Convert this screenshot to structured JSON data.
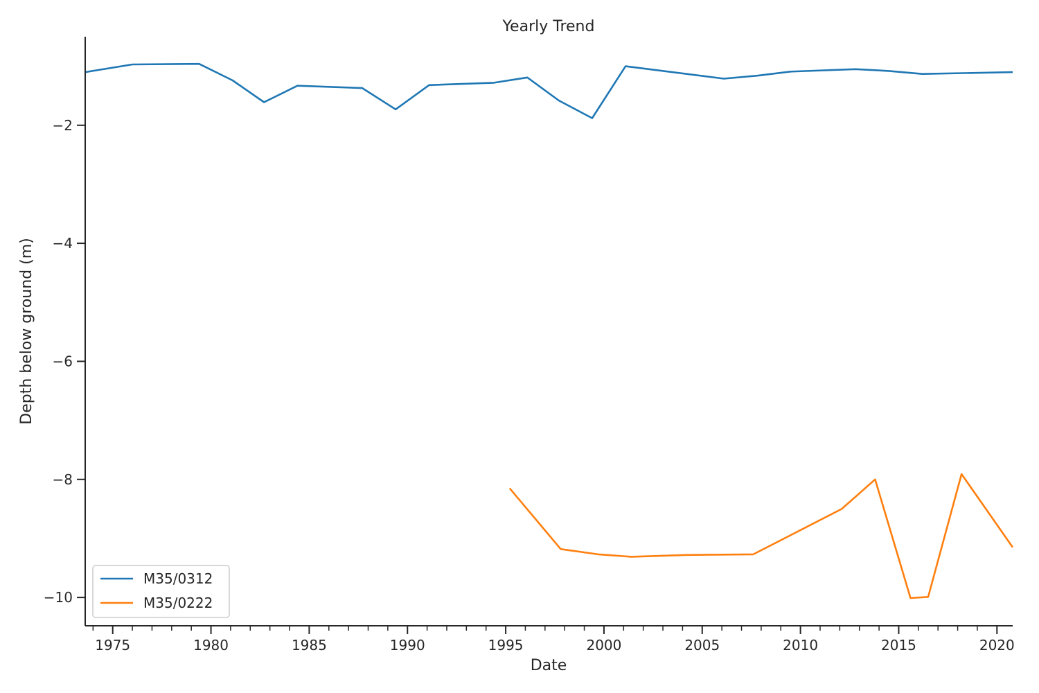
{
  "chart_data": {
    "type": "line",
    "title": "Yearly Trend",
    "xlabel": "Date",
    "ylabel": "Depth below ground (m)",
    "xlim": [
      1973.6,
      2020.8
    ],
    "ylim": [
      -10.48,
      -0.5
    ],
    "x_ticks": [
      1975,
      1980,
      1985,
      1990,
      1995,
      2000,
      2005,
      2010,
      2015,
      2020
    ],
    "x_tick_labels": [
      "1975",
      "1980",
      "1985",
      "1990",
      "1995",
      "2000",
      "2005",
      "2010",
      "2015",
      "2020"
    ],
    "y_ticks": [
      -2,
      -4,
      -6,
      -8,
      -10
    ],
    "y_tick_labels": [
      "−2",
      "−4",
      "−6",
      "−8",
      "−10"
    ],
    "grid": false,
    "legend_position": "lower-left",
    "series": [
      {
        "name": "M35/0312",
        "color": "#1f77b4",
        "x": [
          1973.6,
          1976.0,
          1979.4,
          1981.1,
          1982.7,
          1984.4,
          1987.7,
          1989.4,
          1991.1,
          1994.4,
          1996.1,
          1997.7,
          1999.4,
          2001.1,
          2006.1,
          2007.8,
          2009.5,
          2012.8,
          2014.5,
          2016.2,
          2020.8
        ],
        "y": [
          -1.1,
          -0.97,
          -0.96,
          -1.24,
          -1.61,
          -1.33,
          -1.37,
          -1.73,
          -1.32,
          -1.28,
          -1.19,
          -1.58,
          -1.88,
          -1.0,
          -1.21,
          -1.16,
          -1.09,
          -1.05,
          -1.08,
          -1.13,
          -1.1
        ]
      },
      {
        "name": "M35/0222",
        "color": "#ff7f0e",
        "x": [
          1995.2,
          1997.8,
          1999.7,
          2001.4,
          2004.2,
          2007.6,
          2012.1,
          2013.8,
          2015.6,
          2016.5,
          2018.2,
          2020.8
        ],
        "y": [
          -8.15,
          -9.18,
          -9.27,
          -9.31,
          -9.28,
          -9.27,
          -8.5,
          -8.0,
          -10.01,
          -9.99,
          -7.91,
          -9.15
        ]
      }
    ]
  }
}
